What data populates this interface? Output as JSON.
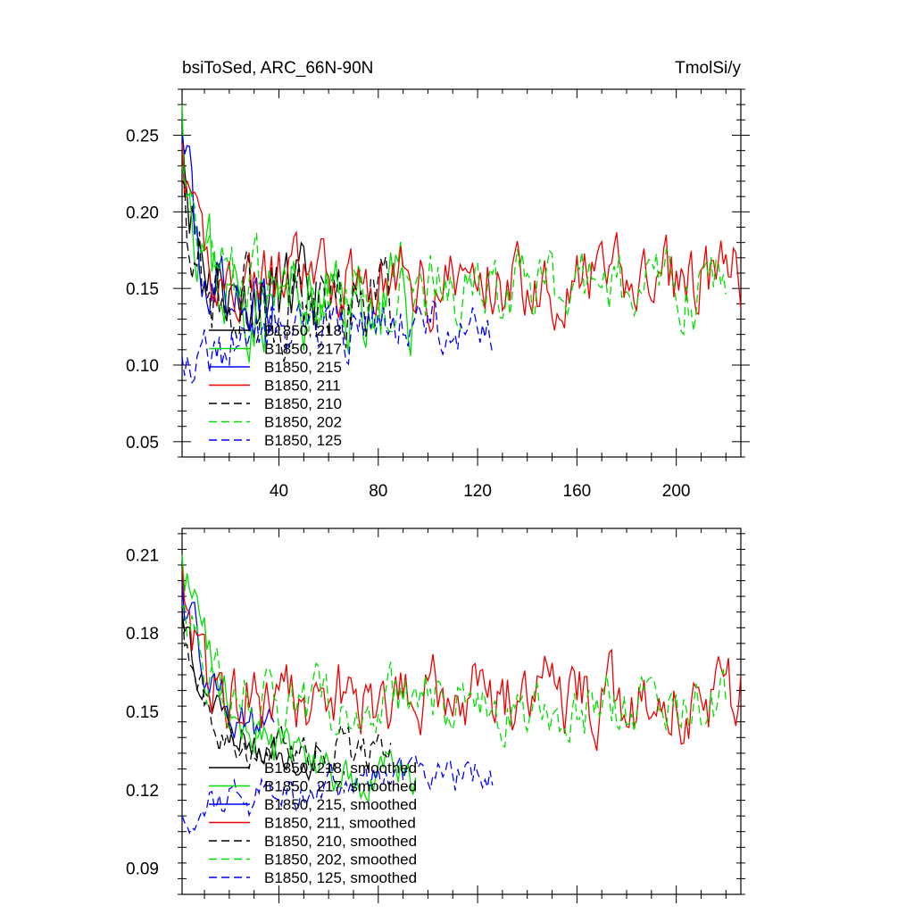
{
  "chart_data": [
    {
      "type": "line",
      "title": "bsiToSed, ARC_66N-90N",
      "units": "TmolSi/y",
      "xlim": [
        1,
        226
      ],
      "ylim": [
        0.04,
        0.28
      ],
      "xticks": [
        40,
        80,
        120,
        160,
        200
      ],
      "xtick_labels": [
        "40",
        "80",
        "120",
        "160",
        "200"
      ],
      "yticks": [
        0.05,
        0.1,
        0.15,
        0.2,
        0.25
      ],
      "ytick_labels": [
        "0.05",
        "0.10",
        "0.15",
        "0.20",
        "0.25"
      ],
      "legend_placement": "bottom-left",
      "series": [
        {
          "name": "B1850, 218",
          "color": "#000000",
          "dash": "solid",
          "length": 55,
          "start": 0.26,
          "plateau": 0.145,
          "tau": 6,
          "noise": 0.022,
          "seed": 11
        },
        {
          "name": "B1850, 217",
          "color": "#00dd00",
          "dash": "solid",
          "length": 95,
          "start": 0.27,
          "plateau": 0.14,
          "tau": 7,
          "noise": 0.026,
          "seed": 23
        },
        {
          "name": "B1850, 215",
          "color": "#0000ff",
          "dash": "solid",
          "length": 38,
          "start": 0.25,
          "plateau": 0.14,
          "tau": 6,
          "noise": 0.024,
          "seed": 37
        },
        {
          "name": "B1850, 211",
          "color": "#ee0000",
          "dash": "solid",
          "length": 226,
          "start": 0.245,
          "plateau": 0.155,
          "tau": 4,
          "noise": 0.02,
          "seed": 41
        },
        {
          "name": "B1850, 210",
          "color": "#000000",
          "dash": "dash",
          "length": 85,
          "start": 0.22,
          "plateau": 0.14,
          "tau": 6,
          "noise": 0.026,
          "seed": 53
        },
        {
          "name": "B1850, 202",
          "color": "#00dd00",
          "dash": "dash",
          "length": 220,
          "start": 0.23,
          "plateau": 0.15,
          "tau": 7,
          "noise": 0.02,
          "seed": 67
        },
        {
          "name": "B1850, 125",
          "color": "#0000ff",
          "dash": "dash",
          "length": 126,
          "start": 0.105,
          "plateau": 0.13,
          "tau": 60,
          "noise": 0.016,
          "seed": 79
        }
      ]
    },
    {
      "type": "line",
      "title": "",
      "units": "",
      "xlim": [
        1,
        226
      ],
      "ylim": [
        0.08,
        0.22
      ],
      "xticks": [
        40,
        80,
        120,
        160,
        200
      ],
      "xtick_labels": [],
      "yticks": [
        0.09,
        0.12,
        0.15,
        0.18,
        0.21
      ],
      "ytick_labels": [
        "0.09",
        "0.12",
        "0.15",
        "0.18",
        "0.21"
      ],
      "legend_placement": "bottom-left",
      "series": [
        {
          "name": "B1850, 218, smoothed",
          "color": "#000000",
          "dash": "solid",
          "length": 55,
          "start": 0.188,
          "plateau": 0.135,
          "tau": 10,
          "noise": 0.007,
          "seed": 111
        },
        {
          "name": "B1850, 217, smoothed",
          "color": "#00dd00",
          "dash": "solid",
          "length": 95,
          "start": 0.21,
          "plateau": 0.125,
          "tau": 18,
          "noise": 0.008,
          "seed": 123
        },
        {
          "name": "B1850, 215, smoothed",
          "color": "#0000ff",
          "dash": "solid",
          "length": 38,
          "start": 0.2,
          "plateau": 0.135,
          "tau": 14,
          "noise": 0.007,
          "seed": 137
        },
        {
          "name": "B1850, 211, smoothed",
          "color": "#ee0000",
          "dash": "solid",
          "length": 226,
          "start": 0.205,
          "plateau": 0.155,
          "tau": 6,
          "noise": 0.012,
          "seed": 141
        },
        {
          "name": "B1850, 210, smoothed",
          "color": "#000000",
          "dash": "dash",
          "length": 85,
          "start": 0.19,
          "plateau": 0.135,
          "tau": 9,
          "noise": 0.007,
          "seed": 153
        },
        {
          "name": "B1850, 202, smoothed",
          "color": "#00dd00",
          "dash": "dash",
          "length": 220,
          "start": 0.19,
          "plateau": 0.152,
          "tau": 10,
          "noise": 0.01,
          "seed": 167
        },
        {
          "name": "B1850, 125, smoothed",
          "color": "#0000ff",
          "dash": "dash",
          "length": 126,
          "start": 0.11,
          "plateau": 0.13,
          "tau": 70,
          "noise": 0.006,
          "seed": 179
        }
      ]
    }
  ]
}
